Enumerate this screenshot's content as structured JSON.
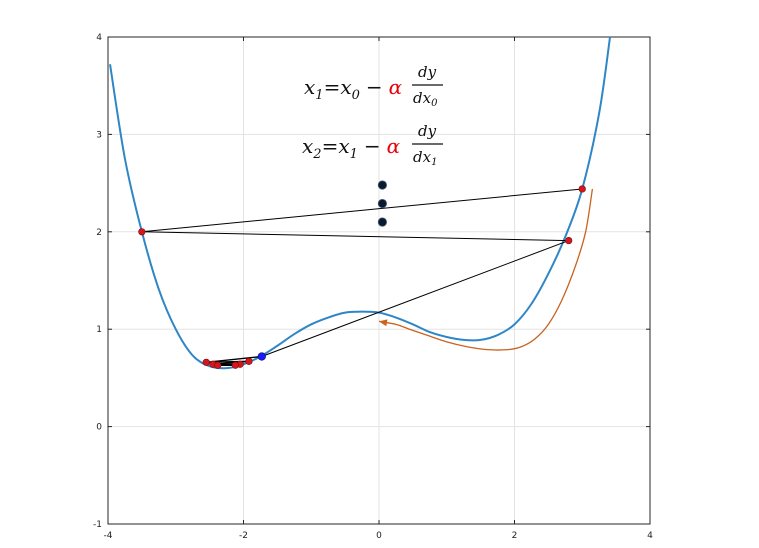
{
  "chart_data": {
    "type": "line",
    "xlim": [
      -4,
      4
    ],
    "ylim": [
      -1,
      4
    ],
    "x_ticks": [
      -4,
      -2,
      0,
      2,
      4
    ],
    "y_ticks": [
      -1,
      0,
      1,
      2,
      3,
      4
    ],
    "grid": true,
    "colors": {
      "curve": "#2f86c6",
      "arrow": "#c9631f",
      "path": "#000000",
      "iterate": "#d6161c",
      "final_point": "#1a1aff"
    },
    "curve": {
      "x": [
        -3.97,
        -3.75,
        -3.5,
        -3.25,
        -3.0,
        -2.75,
        -2.5,
        -2.25,
        -2.0,
        -1.75,
        -1.5,
        -1.25,
        -1.0,
        -0.75,
        -0.5,
        -0.25,
        0.0,
        0.25,
        0.5,
        0.75,
        1.0,
        1.25,
        1.5,
        1.75,
        2.0,
        2.25,
        2.5,
        2.75,
        3.0,
        3.25,
        3.41
      ],
      "y": [
        3.72,
        2.75,
        2.0,
        1.41,
        1.0,
        0.73,
        0.62,
        0.6,
        0.64,
        0.72,
        0.83,
        0.95,
        1.05,
        1.12,
        1.17,
        1.18,
        1.17,
        1.12,
        1.05,
        0.97,
        0.92,
        0.89,
        0.89,
        0.94,
        1.05,
        1.26,
        1.57,
        1.95,
        2.44,
        3.22,
        4.0
      ]
    },
    "gradient_path": [
      {
        "x": 3.0,
        "y": 2.44
      },
      {
        "x": -3.5,
        "y": 2.0
      },
      {
        "x": 2.8,
        "y": 1.91
      },
      {
        "x": -1.73,
        "y": 0.72
      },
      {
        "x": -2.55,
        "y": 0.66
      },
      {
        "x": -1.92,
        "y": 0.67
      },
      {
        "x": -2.45,
        "y": 0.64
      },
      {
        "x": -2.05,
        "y": 0.64
      },
      {
        "x": -2.38,
        "y": 0.63
      },
      {
        "x": -2.12,
        "y": 0.63
      }
    ],
    "final_point": {
      "x": -1.73,
      "y": 0.72
    },
    "ellipsis_dots": [
      {
        "x": 0.05,
        "y": 2.48
      },
      {
        "x": 0.05,
        "y": 2.29
      },
      {
        "x": 0.05,
        "y": 2.1
      }
    ],
    "arrow_path": {
      "x": [
        3.15,
        3.05,
        2.9,
        2.7,
        2.5,
        2.3,
        2.1,
        1.9,
        1.6,
        1.3,
        1.0,
        0.7,
        0.45,
        0.25,
        0.0
      ],
      "y": [
        2.44,
        2.0,
        1.65,
        1.3,
        1.05,
        0.9,
        0.82,
        0.79,
        0.79,
        0.82,
        0.87,
        0.94,
        1.0,
        1.05,
        1.08
      ]
    },
    "annotations": [
      {
        "lhs": "x",
        "lhs_sub": "1",
        "rhs_x": "x",
        "rhs_sub": "0",
        "minus": "−",
        "alpha": "α",
        "num": "dy",
        "den": "dx",
        "den_sub": "0"
      },
      {
        "lhs": "x",
        "lhs_sub": "2",
        "rhs_x": "x",
        "rhs_sub": "1",
        "minus": "−",
        "alpha": "α",
        "num": "dy",
        "den": "dx",
        "den_sub": "1"
      }
    ]
  }
}
